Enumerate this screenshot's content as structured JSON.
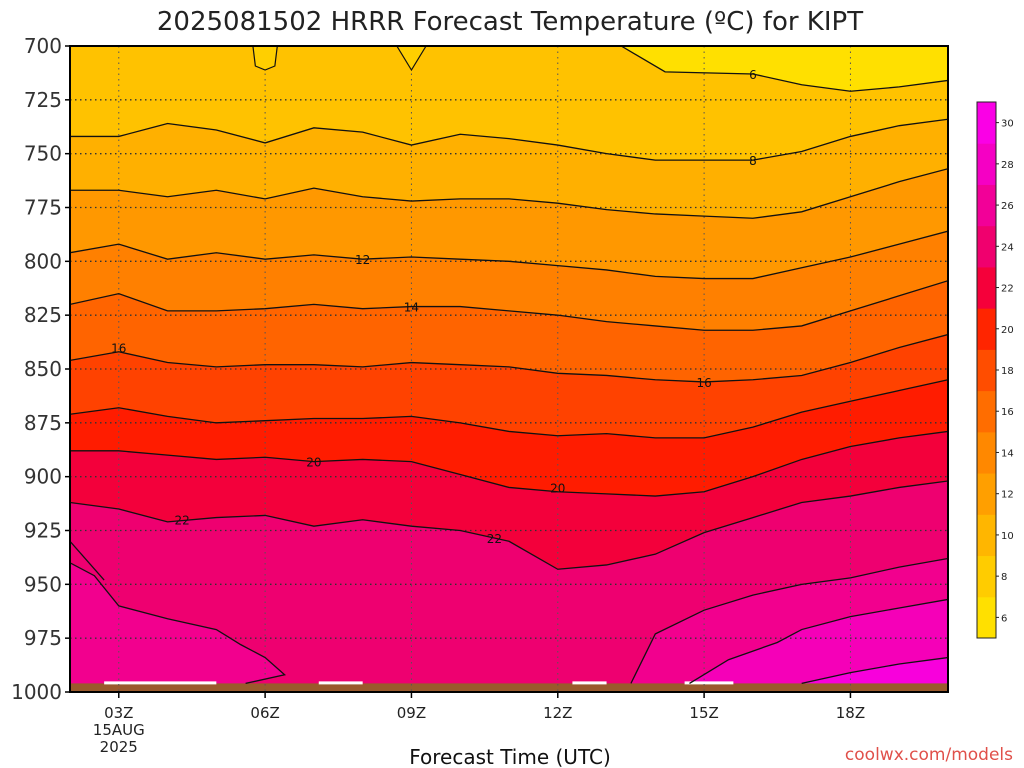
{
  "chart_data": {
    "type": "heatmap",
    "title": "2025081502 HRRR Forecast Temperature (ºC) for KIPT",
    "xlabel": "Forecast Time (UTC)",
    "credit": "coolwx.com/models",
    "x_hours": [
      2,
      3,
      4,
      5,
      6,
      7,
      8,
      9,
      10,
      11,
      12,
      13,
      14,
      15,
      16,
      17,
      18,
      19,
      20
    ],
    "x_ticks": [
      {
        "hour": 3,
        "lines": [
          "03Z",
          "15AUG",
          "2025"
        ]
      },
      {
        "hour": 6,
        "lines": [
          "06Z"
        ]
      },
      {
        "hour": 9,
        "lines": [
          "09Z"
        ]
      },
      {
        "hour": 12,
        "lines": [
          "12Z"
        ]
      },
      {
        "hour": 15,
        "lines": [
          "15Z"
        ]
      },
      {
        "hour": 18,
        "lines": [
          "18Z"
        ]
      }
    ],
    "y_ticks": [
      700,
      725,
      750,
      775,
      800,
      825,
      850,
      875,
      900,
      925,
      950,
      975,
      1000
    ],
    "ylim": [
      1000,
      700
    ],
    "y_axis": "pressure (hPa), decreasing upward",
    "surface_pressure": 996,
    "contour_interval": 2,
    "contours": [
      {
        "level": 6,
        "label": "6",
        "label_hour": 16,
        "points": [
          [
            13.3,
            700
          ],
          [
            14.2,
            712
          ],
          [
            16,
            713
          ],
          [
            17,
            718
          ],
          [
            18,
            721
          ],
          [
            19,
            719
          ],
          [
            20,
            716
          ]
        ]
      },
      {
        "level": 8,
        "label": "8",
        "label_hour": 16,
        "points": [
          [
            2,
            742
          ],
          [
            3,
            742
          ],
          [
            4,
            736
          ],
          [
            5,
            739
          ],
          [
            6,
            745
          ],
          [
            7,
            738
          ],
          [
            8,
            740
          ],
          [
            9,
            746
          ],
          [
            10,
            741
          ],
          [
            11,
            743
          ],
          [
            12,
            746
          ],
          [
            13,
            750
          ],
          [
            14,
            753
          ],
          [
            15,
            753
          ],
          [
            16,
            753
          ],
          [
            17,
            749
          ],
          [
            18,
            742
          ],
          [
            19,
            737
          ],
          [
            20,
            734
          ]
        ]
      },
      {
        "level": 10,
        "label": "",
        "label_hour": null,
        "points": [
          [
            2,
            767
          ],
          [
            3,
            767
          ],
          [
            4,
            770
          ],
          [
            5,
            767
          ],
          [
            6,
            771
          ],
          [
            7,
            766
          ],
          [
            8,
            770
          ],
          [
            9,
            772
          ],
          [
            10,
            771
          ],
          [
            11,
            771
          ],
          [
            12,
            773
          ],
          [
            13,
            776
          ],
          [
            14,
            778
          ],
          [
            15,
            779
          ],
          [
            16,
            780
          ],
          [
            17,
            777
          ],
          [
            18,
            770
          ],
          [
            19,
            763
          ],
          [
            20,
            757
          ]
        ]
      },
      {
        "level": 12,
        "label": "12",
        "label_hour": 8,
        "points": [
          [
            2,
            796
          ],
          [
            3,
            792
          ],
          [
            4,
            799
          ],
          [
            5,
            796
          ],
          [
            6,
            799
          ],
          [
            7,
            797
          ],
          [
            8,
            799
          ],
          [
            9,
            798
          ],
          [
            10,
            799
          ],
          [
            11,
            800
          ],
          [
            12,
            802
          ],
          [
            13,
            804
          ],
          [
            14,
            807
          ],
          [
            15,
            808
          ],
          [
            16,
            808
          ],
          [
            17,
            803
          ],
          [
            18,
            798
          ],
          [
            19,
            792
          ],
          [
            20,
            786
          ]
        ]
      },
      {
        "level": 14,
        "label": "14",
        "label_hour": 9,
        "points": [
          [
            2,
            820
          ],
          [
            3,
            815
          ],
          [
            4,
            823
          ],
          [
            5,
            823
          ],
          [
            6,
            822
          ],
          [
            7,
            820
          ],
          [
            8,
            822
          ],
          [
            9,
            821
          ],
          [
            10,
            821
          ],
          [
            11,
            823
          ],
          [
            12,
            825
          ],
          [
            13,
            828
          ],
          [
            14,
            830
          ],
          [
            15,
            832
          ],
          [
            16,
            832
          ],
          [
            17,
            830
          ],
          [
            18,
            823
          ],
          [
            19,
            816
          ],
          [
            20,
            809
          ]
        ]
      },
      {
        "level": 16,
        "label": "16",
        "label_hour": 15,
        "points": [
          [
            2,
            846
          ],
          [
            3,
            842
          ],
          [
            4,
            847
          ],
          [
            5,
            849
          ],
          [
            6,
            848
          ],
          [
            7,
            848
          ],
          [
            8,
            849
          ],
          [
            9,
            847
          ],
          [
            10,
            848
          ],
          [
            11,
            849
          ],
          [
            12,
            852
          ],
          [
            13,
            853
          ],
          [
            14,
            855
          ],
          [
            15,
            856
          ],
          [
            16,
            855
          ],
          [
            17,
            853
          ],
          [
            18,
            847
          ],
          [
            19,
            840
          ],
          [
            20,
            834
          ]
        ]
      },
      {
        "level": 18,
        "label": "",
        "label_hour": null,
        "points": [
          [
            2,
            871
          ],
          [
            3,
            868
          ],
          [
            4,
            872
          ],
          [
            5,
            875
          ],
          [
            6,
            874
          ],
          [
            7,
            873
          ],
          [
            8,
            873
          ],
          [
            9,
            872
          ],
          [
            10,
            875
          ],
          [
            11,
            879
          ],
          [
            12,
            881
          ],
          [
            13,
            880
          ],
          [
            14,
            882
          ],
          [
            15,
            882
          ],
          [
            16,
            877
          ],
          [
            17,
            870
          ],
          [
            18,
            865
          ],
          [
            19,
            860
          ],
          [
            20,
            855
          ]
        ]
      },
      {
        "level": 20,
        "label": "20",
        "label_hour": 7,
        "points": [
          [
            2,
            888
          ],
          [
            3,
            888
          ],
          [
            4,
            890
          ],
          [
            5,
            892
          ],
          [
            6,
            891
          ],
          [
            7,
            893
          ],
          [
            8,
            892
          ],
          [
            9,
            893
          ],
          [
            10,
            899
          ],
          [
            11,
            905
          ],
          [
            12,
            907
          ],
          [
            13,
            908
          ],
          [
            14,
            909
          ],
          [
            15,
            907
          ],
          [
            16,
            900
          ],
          [
            17,
            892
          ],
          [
            18,
            886
          ],
          [
            19,
            882
          ],
          [
            20,
            879
          ]
        ]
      },
      {
        "level": 22,
        "label": "22",
        "label_hour": 10.7,
        "points": [
          [
            2,
            912
          ],
          [
            3,
            915
          ],
          [
            4,
            921
          ],
          [
            5,
            919
          ],
          [
            6,
            918
          ],
          [
            7,
            923
          ],
          [
            8,
            920
          ],
          [
            9,
            923
          ],
          [
            10,
            925
          ],
          [
            11,
            930
          ],
          [
            12,
            943
          ],
          [
            13,
            941
          ],
          [
            14,
            936
          ],
          [
            15,
            926
          ],
          [
            16,
            919
          ],
          [
            17,
            912
          ],
          [
            18,
            909
          ],
          [
            19,
            905
          ],
          [
            20,
            902
          ]
        ]
      },
      {
        "level": 24,
        "label": "",
        "label_hour": null,
        "points": [
          [
            13.5,
            996
          ],
          [
            14,
            973
          ],
          [
            15,
            962
          ],
          [
            16,
            955
          ],
          [
            17,
            950
          ],
          [
            18,
            947
          ],
          [
            19,
            942
          ],
          [
            20,
            938
          ]
        ]
      },
      {
        "level": 24,
        "label": "",
        "label_hour": null,
        "points": [
          [
            2,
            940
          ],
          [
            2.5,
            946
          ],
          [
            3,
            960
          ],
          [
            4,
            966
          ],
          [
            5,
            971
          ],
          [
            5.5,
            978
          ],
          [
            6,
            984
          ],
          [
            6.4,
            992
          ],
          [
            5.6,
            996
          ]
        ]
      },
      {
        "level": 26,
        "label": "",
        "label_hour": null,
        "points": [
          [
            14.7,
            996
          ],
          [
            15.5,
            985
          ],
          [
            16.5,
            977
          ],
          [
            17,
            971
          ],
          [
            18,
            965
          ],
          [
            19,
            961
          ],
          [
            20,
            957
          ]
        ]
      },
      {
        "level": 28,
        "label": "",
        "label_hour": null,
        "points": [
          [
            17,
            996
          ],
          [
            18,
            991
          ],
          [
            19,
            987
          ],
          [
            20,
            984
          ]
        ]
      }
    ],
    "colorbar": {
      "tick_labels": [
        "6",
        "8",
        "10",
        "12",
        "14",
        "16",
        "18",
        "20",
        "22",
        "24",
        "26",
        "28",
        "30"
      ],
      "colors": [
        "#ffe000",
        "#ffcc00",
        "#ffb600",
        "#ff9f00",
        "#ff8800",
        "#ff6d00",
        "#ff4d00",
        "#ff2500",
        "#f5003a",
        "#f0006e",
        "#f20098",
        "#f500c4",
        "#fa00e6"
      ]
    },
    "surface_color": "#9a5a2c"
  }
}
